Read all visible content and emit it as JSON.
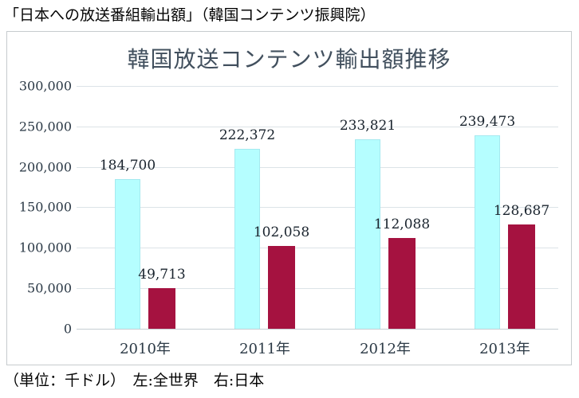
{
  "caption_top": "「日本への放送番組輸出額」（韓国コンテンツ振興院）",
  "caption_bottom": "（単位：千ドル）　左:全世界　右:日本",
  "chart_data": {
    "type": "bar",
    "title": "韓国放送コンテンツ輸出額推移",
    "categories": [
      "2010年",
      "2011年",
      "2012年",
      "2013年"
    ],
    "series": [
      {
        "name": "全世界",
        "position": "left",
        "color": "#b5feff",
        "values": [
          184700,
          222372,
          233821,
          239473
        ]
      },
      {
        "name": "日本",
        "position": "right",
        "color": "#a51240",
        "values": [
          49713,
          102058,
          112088,
          128687
        ]
      }
    ],
    "value_labels": [
      [
        "184,700",
        "222,372",
        "233,821",
        "239,473"
      ],
      [
        "49,713",
        "102,058",
        "112,088",
        "128,687"
      ]
    ],
    "xlabel": "",
    "ylabel": "",
    "ylim": [
      0,
      300000
    ],
    "ytick_step": 50000,
    "ytick_labels": [
      "0",
      "50,000",
      "100,000",
      "150,000",
      "200,000",
      "250,000",
      "300,000"
    ],
    "grid": true,
    "legend_position": "none",
    "unit": "千ドル",
    "colors": {
      "world_bar": "#b5feff",
      "world_bar_border": "#a5e9ef",
      "japan_bar": "#a51240",
      "title_text": "#42505e",
      "axis_text": "#2a3845",
      "gridline": "#dce3e7",
      "frame_border": "#c6cbce"
    }
  }
}
